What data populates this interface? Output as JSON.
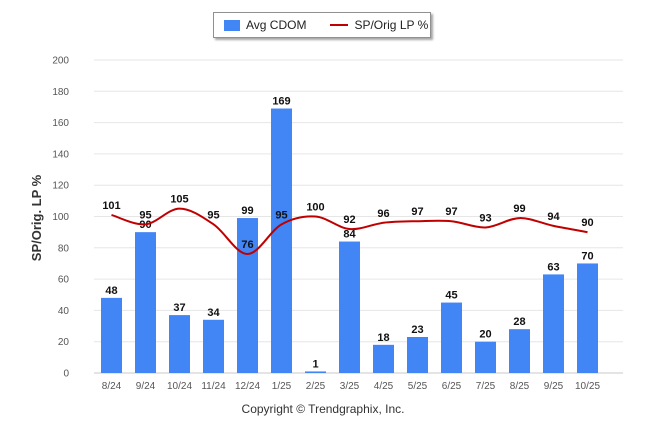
{
  "chart_data": {
    "type": "bar",
    "categories": [
      "8/24",
      "9/24",
      "10/24",
      "11/24",
      "12/24",
      "1/25",
      "2/25",
      "3/25",
      "4/25",
      "5/25",
      "6/25",
      "7/25",
      "8/25",
      "9/25",
      "10/25"
    ],
    "series": [
      {
        "name": "Avg CDOM",
        "kind": "bar",
        "color": "#4285f4",
        "values": [
          48,
          90,
          37,
          34,
          99,
          169,
          1,
          84,
          18,
          23,
          45,
          20,
          28,
          63,
          70
        ]
      },
      {
        "name": "SP/Orig LP %",
        "kind": "line",
        "color": "#c00000",
        "values": [
          101,
          95,
          105,
          95,
          76,
          95,
          100,
          92,
          96,
          97,
          97,
          93,
          99,
          94,
          90
        ]
      }
    ],
    "ylabel": "SP/Orig. LP %",
    "ylim": [
      0,
      200
    ],
    "yticks": [
      0,
      20,
      40,
      60,
      80,
      100,
      120,
      140,
      160,
      180,
      200
    ],
    "grid": true,
    "legend": "top-center"
  },
  "footer": "Copyright © Trendgraphix, Inc."
}
